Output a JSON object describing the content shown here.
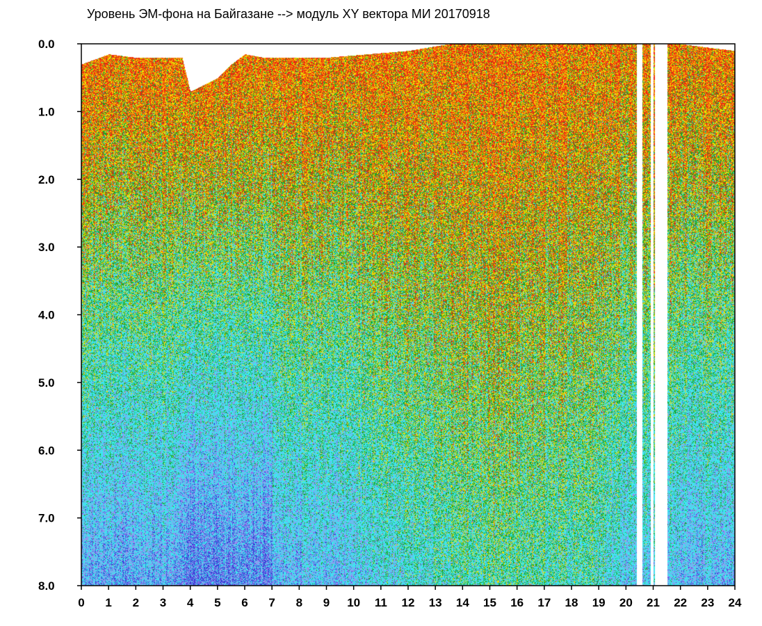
{
  "chart_data": {
    "type": "heatmap",
    "title": "Уровень ЭМ-фона на Байгазане  --> модуль XY вектора МИ  20170918",
    "xlabel": "",
    "ylabel": "",
    "xlim": [
      0,
      24
    ],
    "ylim": [
      0.0,
      8.0
    ],
    "y_inverted": true,
    "x_ticks": [
      "0",
      "1",
      "2",
      "3",
      "4",
      "5",
      "6",
      "7",
      "8",
      "9",
      "10",
      "11",
      "12",
      "13",
      "14",
      "15",
      "16",
      "17",
      "18",
      "19",
      "20",
      "21",
      "22",
      "23",
      "24"
    ],
    "y_ticks": [
      "0.0",
      "1.0",
      "2.0",
      "3.0",
      "4.0",
      "5.0",
      "6.0",
      "7.0",
      "8.0"
    ],
    "grid": false,
    "legend": "none",
    "colors": {
      "blue": "#3a3fd8",
      "violet": "#9c8cf0",
      "cyan": "#3ee6ee",
      "green": "#1aa52a",
      "yellow": "#f2dc00",
      "red": "#f02a10",
      "axis": "#000000"
    },
    "data_gaps_hours": [
      [
        20.4,
        20.6
      ],
      [
        20.9,
        21.0
      ],
      [
        21.05,
        21.5
      ]
    ],
    "upper_envelope_by_hour": [
      {
        "hour": 0,
        "level": 0.3
      },
      {
        "hour": 1,
        "level": 0.15
      },
      {
        "hour": 2,
        "level": 0.2
      },
      {
        "hour": 3,
        "level": 0.2
      },
      {
        "hour": 3.7,
        "level": 0.2
      },
      {
        "hour": 4,
        "level": 0.7
      },
      {
        "hour": 4.5,
        "level": 0.6
      },
      {
        "hour": 5,
        "level": 0.5
      },
      {
        "hour": 5.5,
        "level": 0.3
      },
      {
        "hour": 6,
        "level": 0.15
      },
      {
        "hour": 6.7,
        "level": 0.2
      },
      {
        "hour": 7,
        "level": 0.2
      },
      {
        "hour": 8,
        "level": 0.2
      },
      {
        "hour": 9,
        "level": 0.2
      },
      {
        "hour": 12,
        "level": 0.1
      },
      {
        "hour": 13.5,
        "level": 0.0
      },
      {
        "hour": 16,
        "level": 0.0
      },
      {
        "hour": 18,
        "level": 0.0
      },
      {
        "hour": 20,
        "level": 0.0
      },
      {
        "hour": 22,
        "level": 0.0
      },
      {
        "hour": 24,
        "level": 0.1
      }
    ]
  }
}
